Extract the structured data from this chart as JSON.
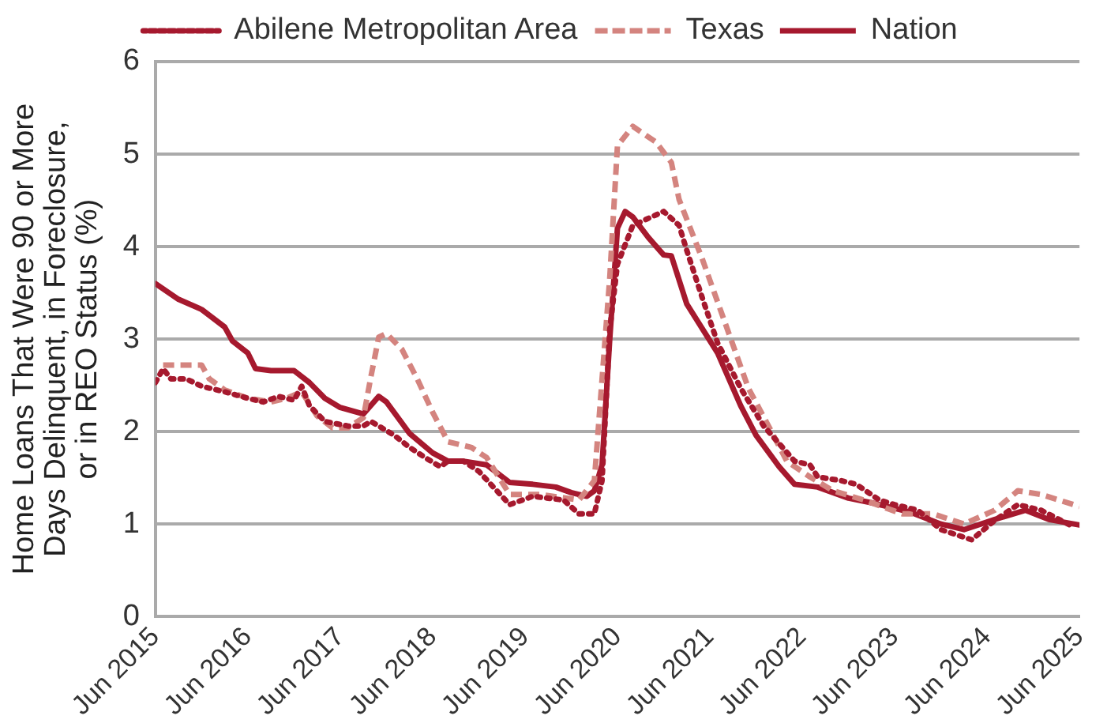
{
  "chart_data": {
    "type": "line",
    "ylabel": "Home Loans That Were 90 or More\nDays Delinquent, in Foreclosure,\nor in REO Status (%)",
    "xlim": [
      "2015-06",
      "2025-06"
    ],
    "xticks": [
      {
        "value": "2015-06",
        "label": "Jun 2015"
      },
      {
        "value": "2016-06",
        "label": "Jun 2016"
      },
      {
        "value": "2017-06",
        "label": "Jun 2017"
      },
      {
        "value": "2018-06",
        "label": "Jun 2018"
      },
      {
        "value": "2019-06",
        "label": "Jun 2019"
      },
      {
        "value": "2020-06",
        "label": "Jun 2020"
      },
      {
        "value": "2021-06",
        "label": "Jun 2021"
      },
      {
        "value": "2022-06",
        "label": "Jun 2022"
      },
      {
        "value": "2023-06",
        "label": "Jun 2023"
      },
      {
        "value": "2024-06",
        "label": "Jun 2024"
      },
      {
        "value": "2025-06",
        "label": "Jun 2025"
      }
    ],
    "ylim": [
      0,
      6
    ],
    "yticks": [
      0,
      1,
      2,
      3,
      4,
      5,
      6
    ],
    "grid": "y",
    "legend": "top",
    "marker": "none",
    "series": [
      {
        "name": "Abilene Metropolitan Area",
        "color": "#a6192e",
        "line_style": "dotted",
        "x": [
          "2015-06",
          "2015-07",
          "2015-08",
          "2015-10",
          "2015-12",
          "2016-03",
          "2016-06",
          "2016-08",
          "2016-10",
          "2016-12",
          "2017-01",
          "2017-02",
          "2017-04",
          "2017-07",
          "2017-09",
          "2017-10",
          "2017-11",
          "2018-01",
          "2018-03",
          "2018-05",
          "2018-07",
          "2018-08",
          "2018-10",
          "2018-12",
          "2019-04",
          "2019-07",
          "2019-11",
          "2020-01",
          "2020-03",
          "2020-04",
          "2020-05",
          "2020-06",
          "2020-08",
          "2020-12",
          "2021-02",
          "2021-03",
          "2021-05",
          "2021-07",
          "2021-10",
          "2022-01",
          "2022-05",
          "2022-07",
          "2022-08",
          "2022-11",
          "2023-01",
          "2023-04",
          "2023-06",
          "2023-09",
          "2023-12",
          "2024-04",
          "2024-07",
          "2024-10",
          "2025-01",
          "2025-05"
        ],
        "values": [
          2.53,
          2.68,
          2.57,
          2.57,
          2.49,
          2.43,
          2.36,
          2.32,
          2.38,
          2.34,
          2.49,
          2.28,
          2.11,
          2.06,
          2.06,
          2.11,
          2.06,
          1.96,
          1.83,
          1.72,
          1.62,
          1.68,
          1.68,
          1.57,
          1.21,
          1.3,
          1.26,
          1.11,
          1.11,
          1.47,
          3.1,
          3.81,
          4.23,
          4.38,
          4.23,
          3.96,
          3.45,
          2.96,
          2.47,
          2.06,
          1.68,
          1.64,
          1.51,
          1.47,
          1.43,
          1.26,
          1.21,
          1.15,
          0.94,
          0.83,
          1.04,
          1.21,
          1.15,
          0.98
        ]
      },
      {
        "name": "Texas",
        "color": "#d4847f",
        "line_style": "dashed",
        "x": [
          "2015-07",
          "2015-12",
          "2016-01",
          "2016-03",
          "2016-06",
          "2016-09",
          "2016-11",
          "2017-01",
          "2017-03",
          "2017-05",
          "2017-07",
          "2017-09",
          "2017-10",
          "2017-11",
          "2017-12",
          "2018-02",
          "2018-04",
          "2018-06",
          "2018-08",
          "2018-11",
          "2019-01",
          "2019-04",
          "2019-08",
          "2020-01",
          "2020-03",
          "2020-05",
          "2020-06",
          "2020-08",
          "2020-11",
          "2021-01",
          "2021-02",
          "2021-05",
          "2021-08",
          "2021-11",
          "2022-02",
          "2022-04",
          "2022-07",
          "2022-10",
          "2023-02",
          "2023-07",
          "2023-11",
          "2024-03",
          "2024-07",
          "2024-10",
          "2025-01",
          "2025-06"
        ],
        "values": [
          2.72,
          2.72,
          2.57,
          2.45,
          2.36,
          2.32,
          2.36,
          2.43,
          2.17,
          2.04,
          2.04,
          2.15,
          2.6,
          3.02,
          3.06,
          2.89,
          2.57,
          2.21,
          1.89,
          1.83,
          1.72,
          1.32,
          1.32,
          1.26,
          1.47,
          3.66,
          5.09,
          5.3,
          5.13,
          4.91,
          4.51,
          3.87,
          3.17,
          2.47,
          2.0,
          1.68,
          1.51,
          1.36,
          1.26,
          1.11,
          1.11,
          1.0,
          1.15,
          1.36,
          1.32,
          1.19
        ]
      },
      {
        "name": "Nation",
        "color": "#a6192e",
        "line_style": "solid",
        "x": [
          "2015-06",
          "2015-09",
          "2015-12",
          "2016-03",
          "2016-04",
          "2016-06",
          "2016-07",
          "2016-09",
          "2016-12",
          "2017-02",
          "2017-04",
          "2017-06",
          "2017-09",
          "2017-11",
          "2017-12",
          "2018-03",
          "2018-06",
          "2018-08",
          "2018-10",
          "2019-01",
          "2019-04",
          "2019-07",
          "2019-10",
          "2019-12",
          "2020-02",
          "2020-03",
          "2020-04",
          "2020-05",
          "2020-06",
          "2020-07",
          "2020-08",
          "2020-10",
          "2020-12",
          "2021-01",
          "2021-03",
          "2021-07",
          "2021-10",
          "2021-12",
          "2022-03",
          "2022-05",
          "2022-08",
          "2022-10",
          "2022-12",
          "2023-03",
          "2023-05",
          "2023-08",
          "2023-12",
          "2024-03",
          "2024-07",
          "2024-11",
          "2025-02",
          "2025-06"
        ],
        "values": [
          3.6,
          3.43,
          3.32,
          3.13,
          2.98,
          2.85,
          2.68,
          2.66,
          2.66,
          2.53,
          2.36,
          2.26,
          2.19,
          2.38,
          2.32,
          1.98,
          1.77,
          1.68,
          1.68,
          1.64,
          1.45,
          1.43,
          1.4,
          1.34,
          1.3,
          1.36,
          1.64,
          3.0,
          4.2,
          4.38,
          4.32,
          4.1,
          3.91,
          3.9,
          3.38,
          2.85,
          2.28,
          1.96,
          1.62,
          1.43,
          1.4,
          1.34,
          1.28,
          1.23,
          1.19,
          1.13,
          1.0,
          0.94,
          1.05,
          1.15,
          1.05,
          0.99
        ]
      }
    ]
  }
}
